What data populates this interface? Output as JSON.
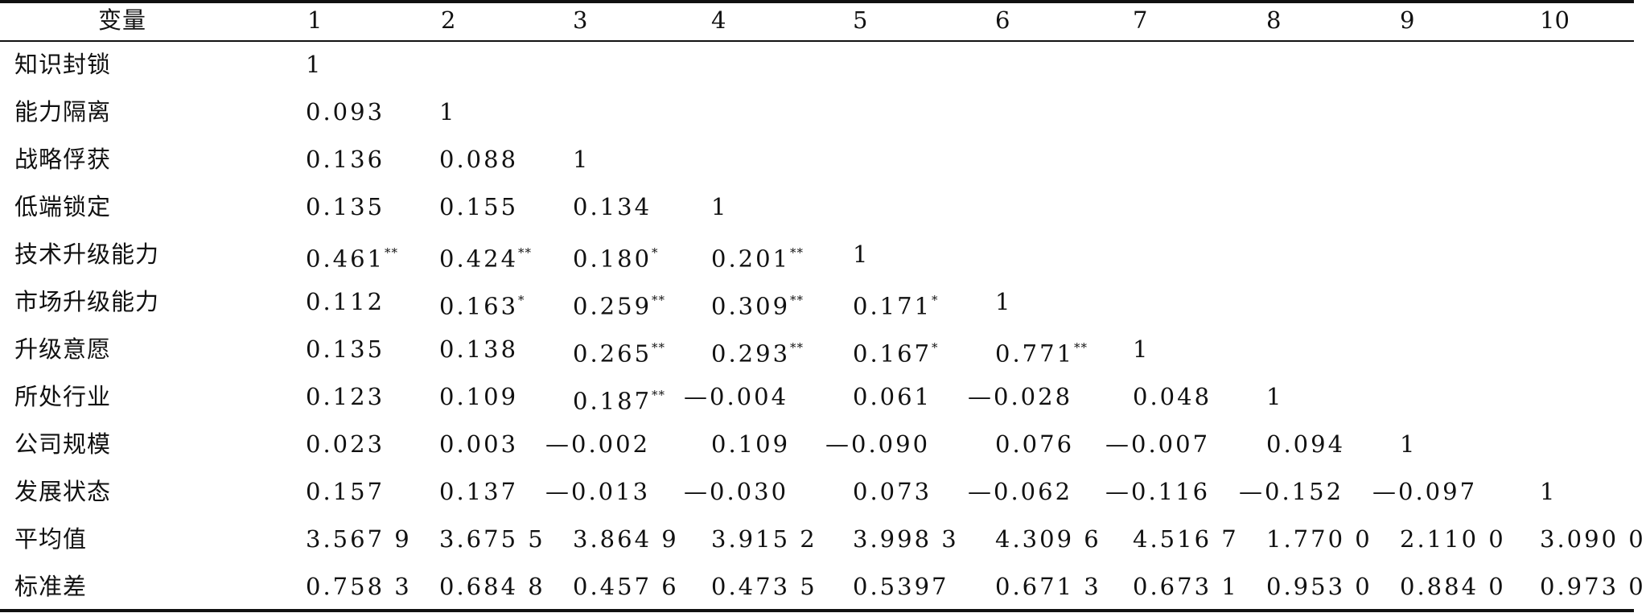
{
  "table": {
    "header": [
      "变量",
      "1",
      "2",
      "3",
      "4",
      "5",
      "6",
      "7",
      "8",
      "9",
      "10"
    ],
    "rows": [
      {
        "label": "知识封锁",
        "cells": [
          "1",
          "",
          "",
          "",
          "",
          "",
          "",
          "",
          "",
          ""
        ],
        "sig": [
          "",
          "",
          "",
          "",
          "",
          "",
          "",
          "",
          "",
          ""
        ]
      },
      {
        "label": "能力隔离",
        "cells": [
          "0.093",
          "1",
          "",
          "",
          "",
          "",
          "",
          "",
          "",
          ""
        ],
        "sig": [
          "",
          "",
          "",
          "",
          "",
          "",
          "",
          "",
          "",
          ""
        ]
      },
      {
        "label": "战略俘获",
        "cells": [
          "0.136",
          "0.088",
          "1",
          "",
          "",
          "",
          "",
          "",
          "",
          ""
        ],
        "sig": [
          "",
          "",
          "",
          "",
          "",
          "",
          "",
          "",
          "",
          ""
        ]
      },
      {
        "label": "低端锁定",
        "cells": [
          "0.135",
          "0.155",
          "0.134",
          "1",
          "",
          "",
          "",
          "",
          "",
          ""
        ],
        "sig": [
          "",
          "",
          "",
          "",
          "",
          "",
          "",
          "",
          "",
          ""
        ]
      },
      {
        "label": "技术升级能力",
        "cells": [
          "0.461",
          "0.424",
          "0.180",
          "0.201",
          "1",
          "",
          "",
          "",
          "",
          ""
        ],
        "sig": [
          "**",
          "**",
          "*",
          "**",
          "",
          "",
          "",
          "",
          "",
          ""
        ]
      },
      {
        "label": "市场升级能力",
        "cells": [
          "0.112",
          "0.163",
          "0.259",
          "0.309",
          "0.171",
          "1",
          "",
          "",
          "",
          ""
        ],
        "sig": [
          "",
          "*",
          "**",
          "**",
          "*",
          "",
          "",
          "",
          "",
          ""
        ]
      },
      {
        "label": "升级意愿",
        "cells": [
          "0.135",
          "0.138",
          "0.265",
          "0.293",
          "0.167",
          "0.771",
          "1",
          "",
          "",
          ""
        ],
        "sig": [
          "",
          "",
          "**",
          "**",
          "*",
          "**",
          "",
          "",
          "",
          ""
        ]
      },
      {
        "label": "所处行业",
        "cells": [
          "0.123",
          "0.109",
          "0.187",
          "—0.004",
          "0.061",
          "—0.028",
          "0.048",
          "1",
          "",
          ""
        ],
        "sig": [
          "",
          "",
          "**",
          "",
          "",
          "",
          "",
          "",
          "",
          ""
        ]
      },
      {
        "label": "公司规模",
        "cells": [
          "0.023",
          "0.003",
          "—0.002",
          "0.109",
          "—0.090",
          "0.076",
          "—0.007",
          "0.094",
          "1",
          ""
        ],
        "sig": [
          "",
          "",
          "",
          "",
          "",
          "",
          "",
          "",
          "",
          ""
        ]
      },
      {
        "label": "发展状态",
        "cells": [
          "0.157",
          "0.137",
          "—0.013",
          "—0.030",
          "0.073",
          "—0.062",
          "—0.116",
          "—0.152",
          "—0.097",
          "1"
        ],
        "sig": [
          "",
          "",
          "",
          "",
          "",
          "",
          "",
          "",
          "",
          ""
        ]
      },
      {
        "label": "平均值",
        "cells": [
          "3.567 9",
          "3.675 5",
          "3.864 9",
          "3.915 2",
          "3.998 3",
          "4.309 6",
          "4.516 7",
          "1.770 0",
          "2.110 0",
          "3.090 0"
        ],
        "sig": [
          "",
          "",
          "",
          "",
          "",
          "",
          "",
          "",
          "",
          ""
        ]
      },
      {
        "label": "标准差",
        "cells": [
          "0.758 3",
          "0.684 8",
          "0.457 6",
          "0.473 5",
          "0.5397",
          "0.671 3",
          "0.673 1",
          "0.953 0",
          "0.884 0",
          "0.973 0"
        ],
        "sig": [
          "",
          "",
          "",
          "",
          "",
          "",
          "",
          "",
          "",
          ""
        ]
      }
    ]
  }
}
